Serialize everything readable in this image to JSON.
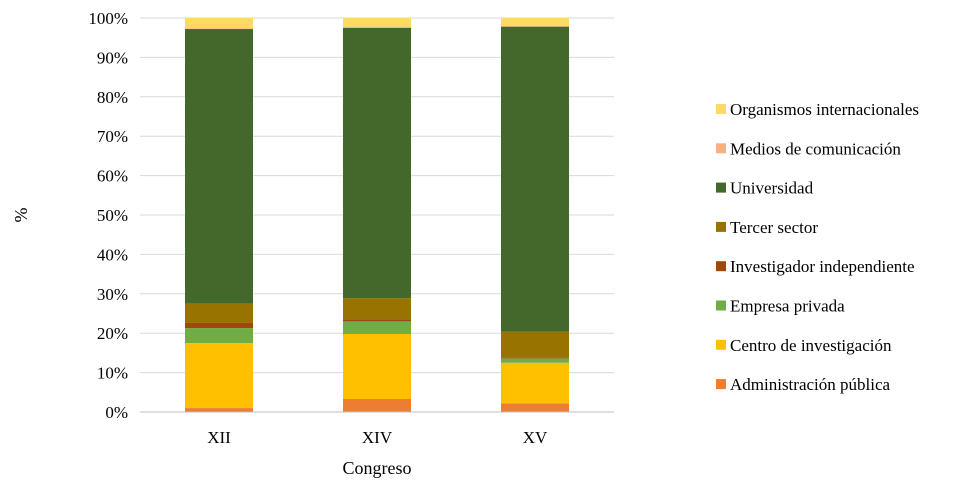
{
  "chart_data": {
    "type": "bar",
    "stacked": true,
    "percent": true,
    "categories": [
      "XII",
      "XIV",
      "XV"
    ],
    "xlabel": "Congreso",
    "ylabel": "%",
    "ylim": [
      0,
      100
    ],
    "yticks": [
      "0%",
      "10%",
      "20%",
      "30%",
      "40%",
      "50%",
      "60%",
      "70%",
      "80%",
      "90%",
      "100%"
    ],
    "grid": true,
    "legend_position": "right",
    "series": [
      {
        "name": "Administración pública",
        "color": "#ED7D31",
        "values": [
          1.0,
          3.3,
          2.2
        ]
      },
      {
        "name": "Centro de investigación",
        "color": "#FFC000",
        "values": [
          16.5,
          16.5,
          10.3
        ]
      },
      {
        "name": "Empresa privada",
        "color": "#70AD47",
        "values": [
          3.8,
          3.2,
          1.1
        ]
      },
      {
        "name": "Investigador independiente",
        "color": "#9E480E",
        "values": [
          1.3,
          0.5,
          0.2
        ]
      },
      {
        "name": "Tercer sector",
        "color": "#997300",
        "values": [
          4.9,
          5.4,
          6.6
        ]
      },
      {
        "name": "Universidad",
        "color": "#43682B",
        "values": [
          69.7,
          68.6,
          77.4
        ]
      },
      {
        "name": "Medios de comunicación",
        "color": "#F4B183",
        "values": [
          0.2,
          0.3,
          0.2
        ]
      },
      {
        "name": "Organismos internacionales",
        "color": "#FFD966",
        "values": [
          2.6,
          2.2,
          2.0
        ]
      }
    ]
  }
}
